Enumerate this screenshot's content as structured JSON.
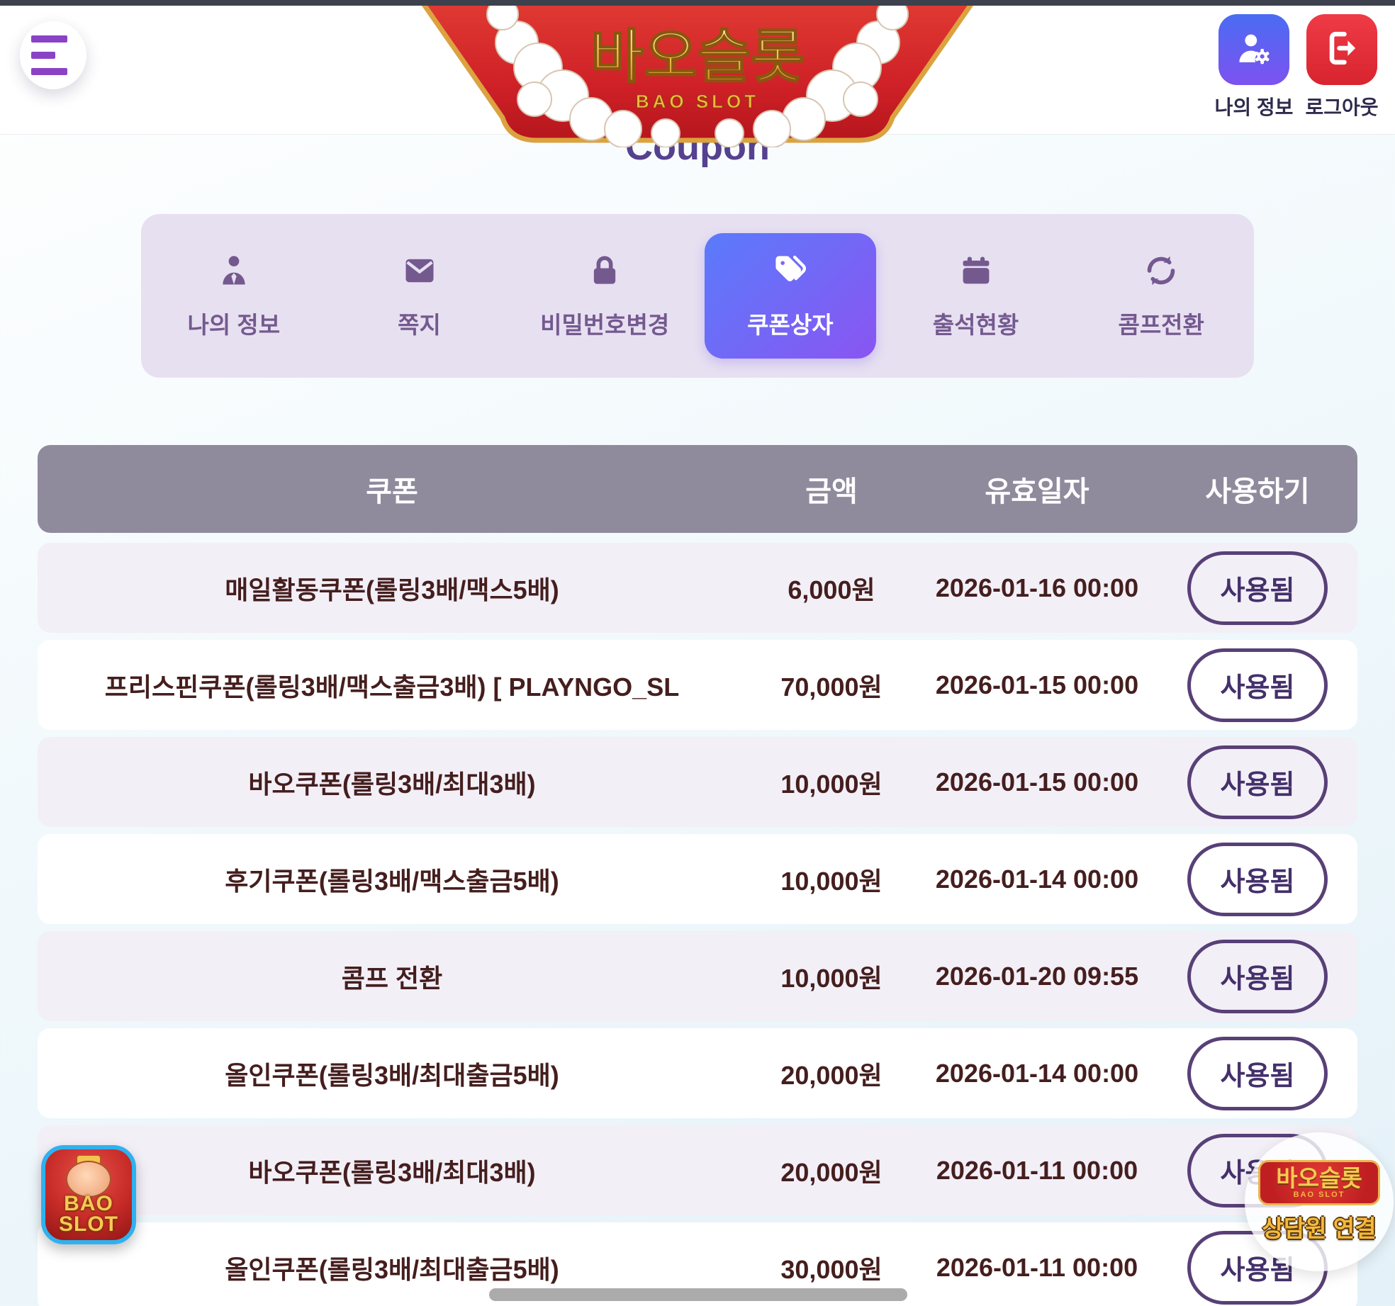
{
  "header": {
    "logo_title": "바오슬롯",
    "logo_subtitle": "BAO SLOT",
    "actions": [
      {
        "label": "나의 정보",
        "icon": "user-gear-icon"
      },
      {
        "label": "로그아웃",
        "icon": "logout-icon"
      }
    ]
  },
  "page": {
    "title": "Coupon"
  },
  "tabs": [
    {
      "label": "나의 정보",
      "icon": "person-icon",
      "active": false
    },
    {
      "label": "쪽지",
      "icon": "mail-icon",
      "active": false
    },
    {
      "label": "비밀번호변경",
      "icon": "lock-icon",
      "active": false
    },
    {
      "label": "쿠폰상자",
      "icon": "tag-icon",
      "active": true
    },
    {
      "label": "출석현황",
      "icon": "calendar-icon",
      "active": false
    },
    {
      "label": "콤프전환",
      "icon": "sync-icon",
      "active": false
    }
  ],
  "table": {
    "columns": [
      "쿠폰",
      "금액",
      "유효일자",
      "사용하기"
    ],
    "rows": [
      {
        "coupon": "매일활동쿠폰(롤링3배/맥스5배)",
        "amount": "6,000원",
        "valid_until": "2026-01-16 00:00",
        "action": "사용됨"
      },
      {
        "coupon": "프리스핀쿠폰(롤링3배/맥스출금3배) [ PLAYNGO_SL",
        "amount": "70,000원",
        "valid_until": "2026-01-15 00:00",
        "action": "사용됨"
      },
      {
        "coupon": "바오쿠폰(롤링3배/최대3배)",
        "amount": "10,000원",
        "valid_until": "2026-01-15 00:00",
        "action": "사용됨"
      },
      {
        "coupon": "후기쿠폰(롤링3배/맥스출금5배)",
        "amount": "10,000원",
        "valid_until": "2026-01-14 00:00",
        "action": "사용됨"
      },
      {
        "coupon": "콤프 전환",
        "amount": "10,000원",
        "valid_until": "2026-01-20 09:55",
        "action": "사용됨"
      },
      {
        "coupon": "올인쿠폰(롤링3배/최대출금5배)",
        "amount": "20,000원",
        "valid_until": "2026-01-14 00:00",
        "action": "사용됨"
      },
      {
        "coupon": "바오쿠폰(롤링3배/최대3배)",
        "amount": "20,000원",
        "valid_until": "2026-01-11 00:00",
        "action": "사용됨"
      },
      {
        "coupon": "올인쿠폰(롤링3배/최대출금5배)",
        "amount": "30,000원",
        "valid_until": "2026-01-11 00:00",
        "action": "사용됨"
      }
    ]
  },
  "floating": {
    "app_badge": {
      "line1": "BAO",
      "line2": "SLOT"
    },
    "support": {
      "logo": "바오슬롯",
      "logo_sub": "BAO SLOT",
      "label": "상담원 연결"
    }
  },
  "colors": {
    "accent_gradient_start": "#5a7bfb",
    "accent_gradient_end": "#8a55f2",
    "logout_red": "#e02c38",
    "hamburger_purple": "#8b43c6",
    "table_header_bg": "#8f8b9d",
    "row_alt_bg": "#f2eff7",
    "row_text": "#451e1e",
    "used_border": "#584077",
    "title_purple": "#55418f",
    "banner_red": "#cf2127",
    "banner_gold": "#f7c953"
  }
}
